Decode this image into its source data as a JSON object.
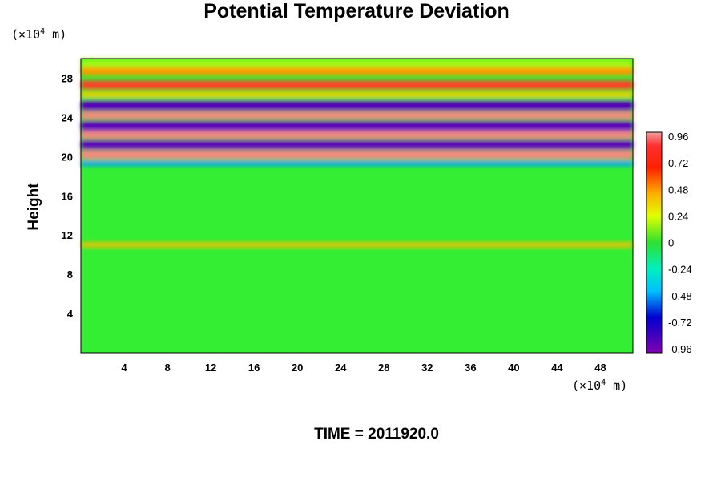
{
  "chart_data": {
    "type": "heatmap",
    "title": "Potential Temperature Deviation",
    "ylabel": "Height",
    "x_unit_pre": "(×10",
    "x_unit_exp": "4",
    "x_unit_post": " m)",
    "y_unit_pre": "(×10",
    "y_unit_exp": "4",
    "y_unit_post": " m)",
    "footer": "TIME = 2011920.0",
    "xlim": [
      0,
      51
    ],
    "ylim": [
      0,
      30
    ],
    "x_ticks": [
      4,
      8,
      12,
      16,
      20,
      24,
      28,
      32,
      36,
      40,
      44,
      48
    ],
    "y_ticks": [
      4,
      8,
      12,
      16,
      20,
      24,
      28
    ],
    "colorbar": {
      "range": [
        -1.02,
        1.02
      ],
      "tick_values": [
        0.96,
        0.72,
        0.48,
        0.24,
        0,
        -0.24,
        -0.48,
        -0.72,
        -0.96
      ],
      "tick_labels": [
        "0.96",
        "0.72",
        "0.48",
        "0.24",
        "0",
        "-0.24",
        "-0.48",
        "-0.72",
        "-0.96"
      ]
    },
    "bands": [
      {
        "height": 29.5,
        "value": 0.15,
        "thickness": 0.9
      },
      {
        "height": 28.7,
        "value": 0.55,
        "thickness": 0.8
      },
      {
        "height": 27.3,
        "value": 0.85,
        "thickness": 0.9
      },
      {
        "height": 26.3,
        "value": 0.4,
        "thickness": 0.6
      },
      {
        "height": 25.2,
        "value": -0.95,
        "thickness": 1.0
      },
      {
        "height": 24.2,
        "value": 0.96,
        "thickness": 0.8
      },
      {
        "height": 23.1,
        "value": -0.96,
        "thickness": 1.0
      },
      {
        "height": 22.2,
        "value": 0.96,
        "thickness": 0.8
      },
      {
        "height": 21.2,
        "value": -0.96,
        "thickness": 0.9
      },
      {
        "height": 20.2,
        "value": 0.96,
        "thickness": 0.9
      },
      {
        "height": 19.3,
        "value": -0.5,
        "thickness": 0.5
      },
      {
        "height": 11.0,
        "value": 0.45,
        "thickness": 0.5
      }
    ]
  }
}
